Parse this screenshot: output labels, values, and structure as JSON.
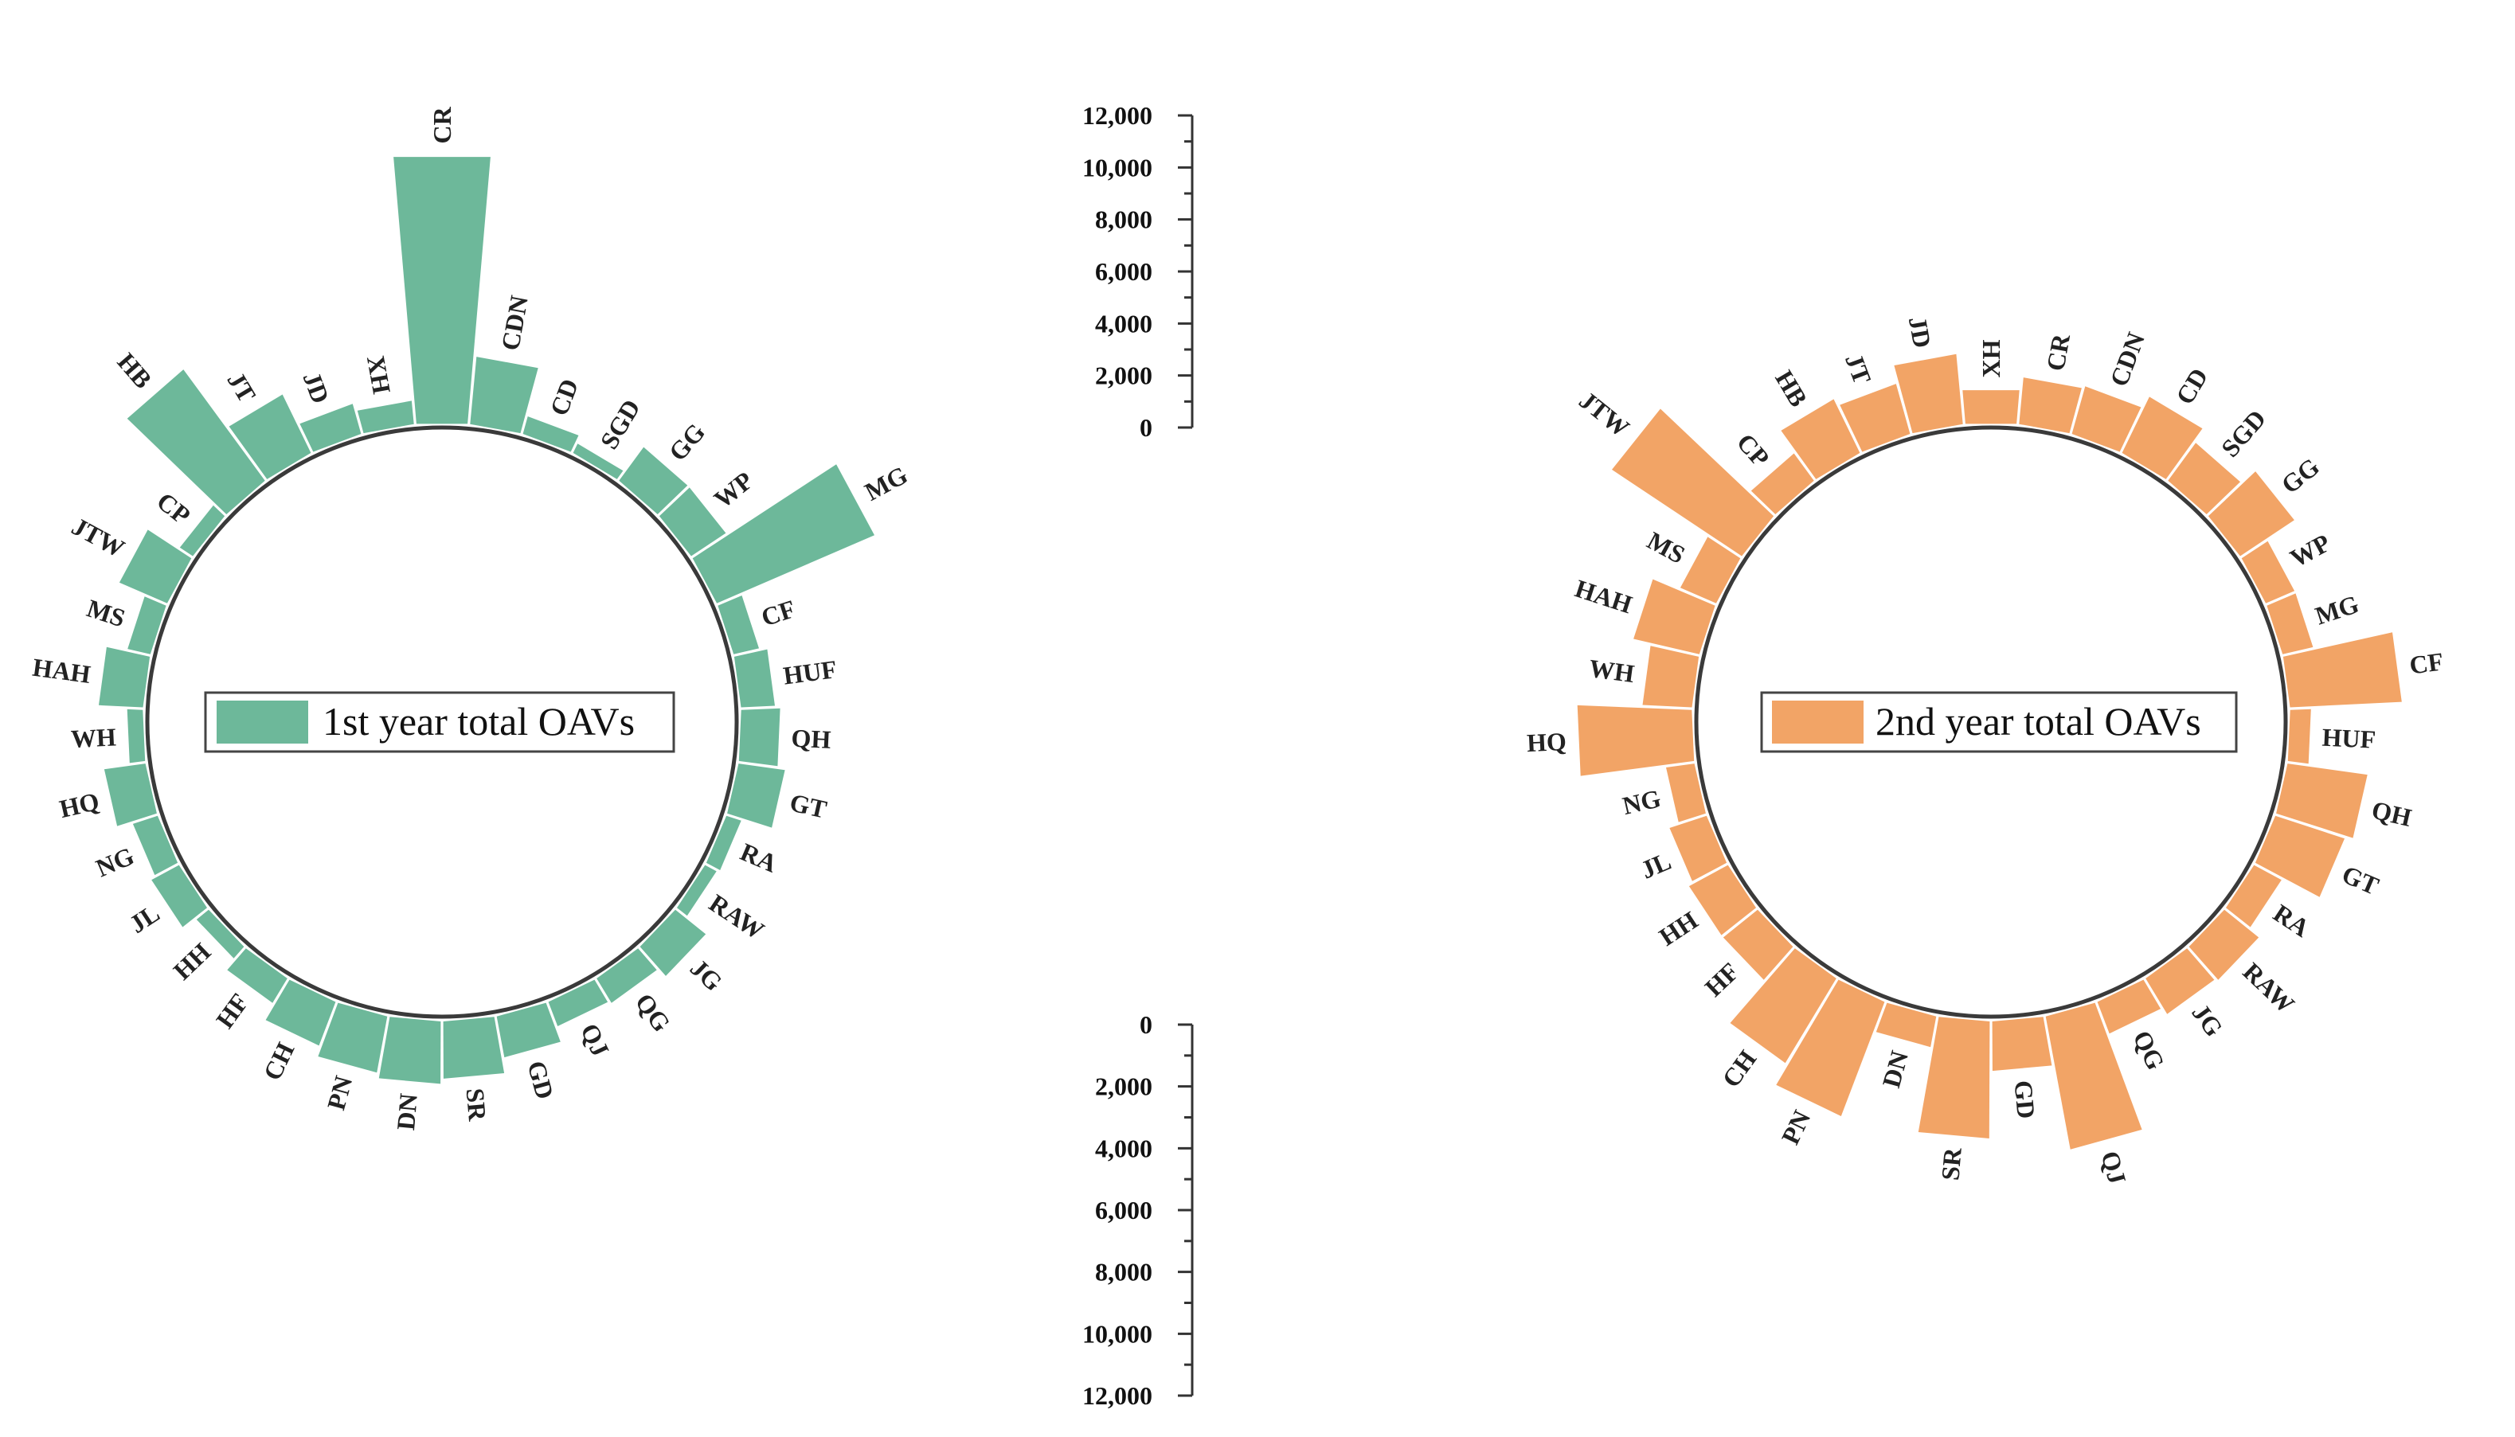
{
  "chart_data": [
    {
      "type": "radial-bar",
      "id": "left",
      "legend": "1st year total OAVs",
      "color": "#6db89a",
      "categories": [
        "CR",
        "CDN",
        "CD",
        "SGD",
        "GG",
        "WP",
        "MG",
        "CF",
        "HUF",
        "QH",
        "GT",
        "RA",
        "RAW",
        "JG",
        "QG",
        "QJ",
        "GD",
        "SR",
        "DN",
        "PN",
        "CH",
        "HF",
        "HH",
        "JL",
        "NG",
        "HQ",
        "WH",
        "HAH",
        "MS",
        "JTW",
        "CP",
        "HB",
        "JT",
        "JD",
        "XH"
      ],
      "values": [
        10300,
        2600,
        700,
        400,
        1600,
        1600,
        6600,
        1000,
        1300,
        1500,
        1800,
        600,
        500,
        1500,
        1100,
        1000,
        1600,
        2200,
        2400,
        2200,
        1800,
        1100,
        600,
        1200,
        1000,
        1600,
        600,
        1700,
        900,
        2000,
        600,
        5300,
        2500,
        1200,
        900
      ],
      "y_axis": {
        "range": [
          0,
          12000
        ],
        "ticks": [
          "12,000",
          "10,000",
          "8,000",
          "6,000",
          "4,000",
          "2,000",
          "0"
        ]
      }
    },
    {
      "type": "radial-bar",
      "id": "right",
      "legend": "2nd year total OAVs",
      "color": "#f2a466",
      "categories": [
        "XH",
        "CR",
        "CDN",
        "CD",
        "SGD",
        "GG",
        "WP",
        "MG",
        "CF",
        "HUF",
        "QH",
        "GT",
        "RA",
        "RAW",
        "JG",
        "QG",
        "QJ",
        "GD",
        "SR",
        "DN",
        "PN",
        "CH",
        "HF",
        "HH",
        "JL",
        "NG",
        "HQ",
        "WH",
        "HAH",
        "MS",
        "JTW",
        "CP",
        "HB",
        "JT",
        "JD"
      ],
      "values": [
        1300,
        1800,
        1900,
        2400,
        1800,
        2500,
        1200,
        1200,
        4300,
        800,
        3100,
        2800,
        1200,
        1700,
        1600,
        1300,
        5200,
        1900,
        4500,
        1200,
        4700,
        3800,
        1700,
        1700,
        1500,
        1100,
        4400,
        1900,
        2600,
        1500,
        6000,
        1300,
        2300,
        2000,
        2700
      ],
      "y_axis": {
        "range": [
          0,
          12000
        ],
        "ticks": [
          "0",
          "2,000",
          "4,000",
          "6,000",
          "8,000",
          "10,000",
          "12,000"
        ]
      }
    }
  ]
}
